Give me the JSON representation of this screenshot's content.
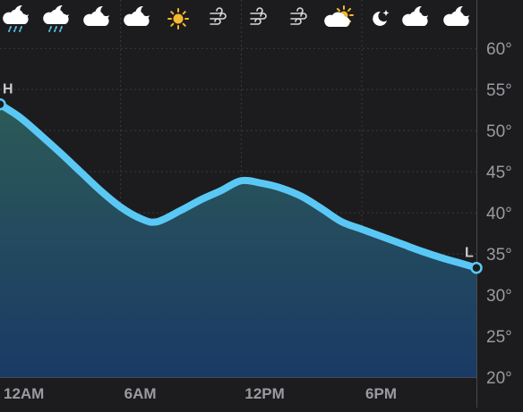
{
  "hourly_icons": [
    "cloudy-night-rain-icon",
    "cloudy-night-rain-icon",
    "partly-cloudy-night-icon",
    "partly-cloudy-night-icon",
    "sunny-icon",
    "windy-icon",
    "windy-icon",
    "windy-icon",
    "partly-sunny-icon",
    "clear-night-icon",
    "partly-cloudy-night-icon",
    "partly-cloudy-night-icon"
  ],
  "colors": {
    "background": "#1c1c1e",
    "line": "#5ac8f5",
    "fill_top": "#2c5a57",
    "fill_bottom": "#1a3a66",
    "sun": "#f5b82e",
    "grid": "#3a3a3c"
  },
  "chart_data": {
    "type": "area",
    "x_tick_labels": [
      "12AM",
      "6AM",
      "12PM",
      "6PM"
    ],
    "x_ticks": [
      0,
      6,
      12,
      18
    ],
    "xlim": [
      0,
      23.7
    ],
    "y_tick_labels": [
      "60°",
      "55°",
      "50°",
      "45°",
      "40°",
      "35°",
      "30°",
      "25°",
      "20°"
    ],
    "y_ticks": [
      60,
      55,
      50,
      45,
      40,
      35,
      30,
      25,
      20
    ],
    "ylim": [
      20,
      61
    ],
    "grid": true,
    "series": [
      {
        "x": [
          0,
          1,
          2,
          3,
          4,
          5,
          6,
          7,
          7.8,
          9,
          10,
          11,
          12,
          13,
          14,
          15,
          16,
          17,
          18,
          19,
          20,
          21,
          22,
          23,
          23.7
        ],
        "values": [
          53.2,
          51.6,
          49.5,
          47.3,
          45,
          42.7,
          40.7,
          39.3,
          38.9,
          40.3,
          41.6,
          42.7,
          43.9,
          43.6,
          43,
          42,
          40.5,
          38.9,
          38,
          37.1,
          36.2,
          35.3,
          34.5,
          33.8,
          33.3
        ]
      }
    ],
    "markers": [
      {
        "label": "H",
        "x": 0,
        "value": 53.2
      },
      {
        "label": "L",
        "x": 23.7,
        "value": 33.3
      }
    ]
  }
}
